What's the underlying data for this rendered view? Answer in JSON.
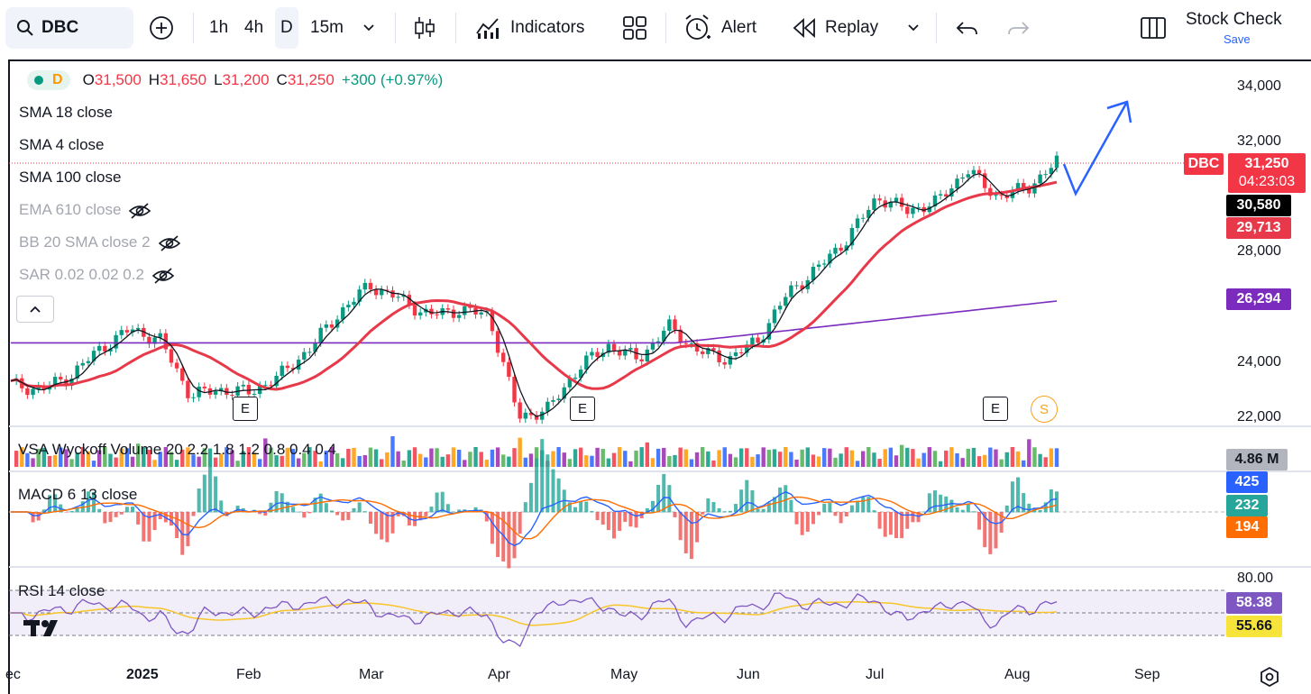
{
  "toolbar": {
    "symbol": "DBC",
    "timeframes": [
      "1h",
      "4h",
      "D",
      "15m"
    ],
    "indicators_label": "Indicators",
    "alert_label": "Alert",
    "replay_label": "Replay",
    "layout_name": "Stock Check",
    "save_label": "Save"
  },
  "legend": {
    "interval": "D",
    "open_label": "O",
    "open": "31,500",
    "high_label": "H",
    "high": "31,650",
    "low_label": "L",
    "low": "31,200",
    "close_label": "C",
    "close": "31,250",
    "change": "+300 (+0.97%)",
    "studies": [
      {
        "label": "SMA 18 close",
        "hidden": false
      },
      {
        "label": "SMA 4 close",
        "hidden": false
      },
      {
        "label": "SMA 100 close",
        "hidden": false
      },
      {
        "label": "EMA 610 close",
        "hidden": true
      },
      {
        "label": "BB 20 SMA close 2",
        "hidden": true
      },
      {
        "label": "SAR 0.02 0.02 0.2",
        "hidden": true
      }
    ]
  },
  "panes": {
    "volume_label": "VSA Wyckoff Volume 20 2.2 1.8 1.2 0.8 0.4 0.4",
    "macd_label": "MACD 6 13 close",
    "rsi_label": "RSI 14 close"
  },
  "price_axis": {
    "ticks": [
      "34,000",
      "32,000",
      "28,000",
      "24,000",
      "22,000"
    ]
  },
  "rsi_axis": {
    "tick": "80.00"
  },
  "time_axis": {
    "labels": [
      "ec",
      "2025",
      "Feb",
      "Mar",
      "Apr",
      "May",
      "Jun",
      "Jul",
      "Aug",
      "Sep"
    ]
  },
  "price_tags": {
    "symbol_tag": "DBC",
    "last": "31,250",
    "countdown": "04:23:03",
    "sma4": "30,580",
    "sma18": "29,713",
    "sma100": "26,294",
    "volume": "4.86 M",
    "macd": "425",
    "hist": "232",
    "signal": "194",
    "rsi": "58.38",
    "rsi_ma": "55.66"
  },
  "markers": {
    "earnings": "E",
    "split": "S"
  },
  "colors": {
    "up": "#089981",
    "down": "#f23645",
    "sma18": "#e8394a",
    "sma4": "#131722",
    "sma100": "#7b2cbf",
    "macd": "#2962ff",
    "signal": "#ff6d00",
    "rsi": "#7e57c2",
    "rsi_ma": "#f7c52a",
    "arrow": "#2962ff"
  },
  "chart_data": {
    "type": "candlestick",
    "symbol": "DBC",
    "interval": "D",
    "ylim": [
      21500,
      34500
    ],
    "dates": [
      "Dec",
      "2025",
      "Feb",
      "Mar",
      "Apr",
      "May",
      "Jun",
      "Jul",
      "Aug",
      "Sep"
    ],
    "approx_closes": [
      23200,
      23000,
      23500,
      24500,
      25200,
      24800,
      22800,
      23000,
      22900,
      23500,
      24500,
      25800,
      26800,
      26300,
      25700,
      25900,
      25700,
      22000,
      22300,
      23800,
      24600,
      24100,
      25300,
      24400,
      24100,
      24800,
      26500,
      27400,
      28500,
      30000,
      29500,
      29800,
      31000,
      30000,
      30300,
      31250
    ],
    "sma18_last": 29713,
    "sma4_last": 30580,
    "sma100_last": 26294,
    "projection": "up arrow toward 33,500"
  }
}
